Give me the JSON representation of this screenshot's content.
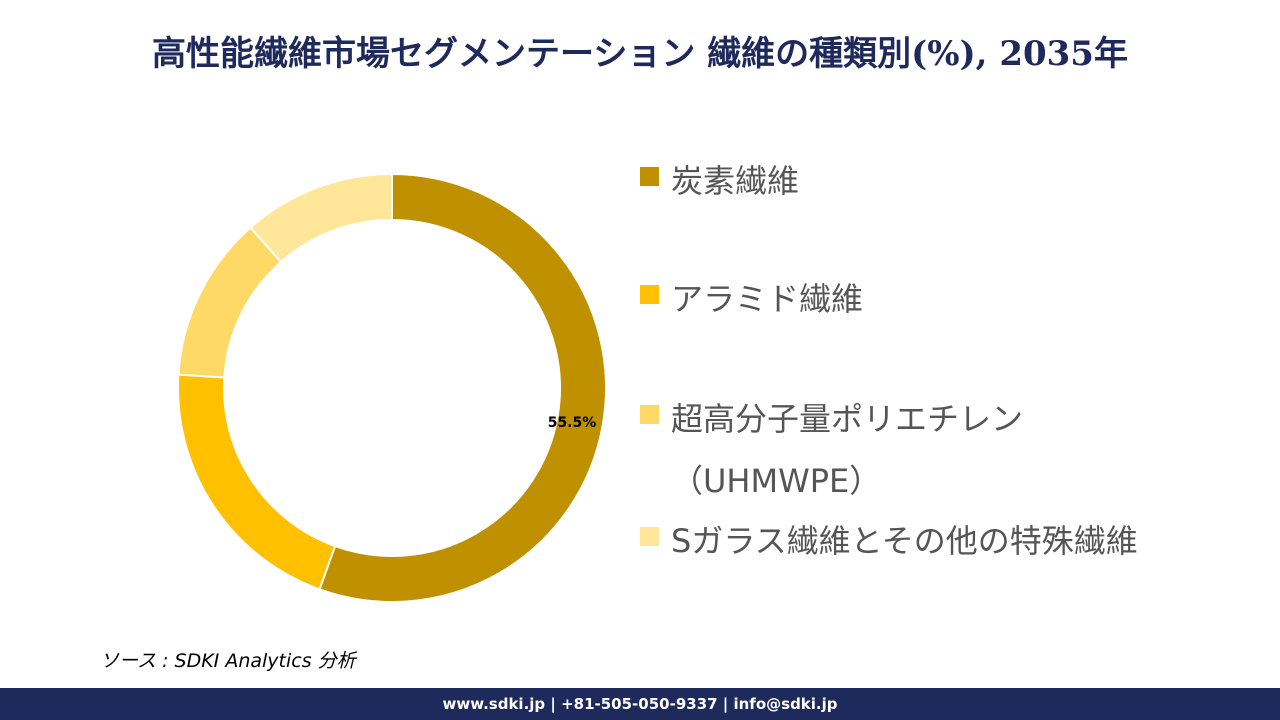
{
  "title": "高性能繊維市場セグメンテーション 繊維の種類別(%), 2035年",
  "chart_data": {
    "type": "pie",
    "title": "高性能繊維市場セグメンテーション 繊維の種類別(%), 2035年",
    "categories": [
      "炭素繊維",
      "アラミド繊維",
      "超高分子量ポリエチレン（UHMWPE）",
      "Sガラス繊維とその他の特殊繊維"
    ],
    "values": [
      55.5,
      20.5,
      12.5,
      11.5
    ],
    "colors": [
      "#bf9000",
      "#ffc000",
      "#ffd966",
      "#ffe699"
    ],
    "data_labels": [
      "55.5%"
    ],
    "legend_position": "right",
    "style": "donut"
  },
  "legend": [
    {
      "label": "炭素繊維",
      "color": "#bf9000"
    },
    {
      "label": "アラミド繊維",
      "color": "#ffc000"
    },
    {
      "label": "超高分子量ポリエチレン（UHMWPE）",
      "color": "#ffd966"
    },
    {
      "label": "Sガラス繊維とその他の特殊繊維",
      "color": "#ffe699"
    }
  ],
  "source": "ソース : SDKI Analytics 分析",
  "footer": "www.sdki.jp | +81-505-050-9337 | info@sdki.jp"
}
